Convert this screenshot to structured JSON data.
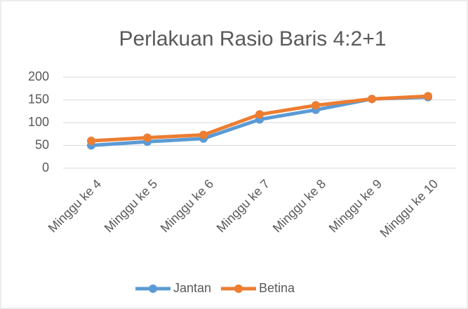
{
  "chart_data": {
    "type": "line",
    "title": "Perlakuan Rasio Baris 4:2+1",
    "categories": [
      "Minggu ke 4",
      "Minggu ke 5",
      "Minggu ke 6",
      "Minggu ke 7",
      "Minggu ke 8",
      "Minggu ke 9",
      "Minggu ke 10"
    ],
    "series": [
      {
        "name": "Jantan",
        "color": "#5b9bd5",
        "values": [
          50,
          58,
          65,
          107,
          128,
          152,
          156
        ]
      },
      {
        "name": "Betina",
        "color": "#ed7d31",
        "values": [
          60,
          67,
          73,
          118,
          138,
          152,
          158
        ]
      }
    ],
    "ylim": [
      0,
      200
    ],
    "yticks": [
      0,
      50,
      100,
      150,
      200
    ],
    "grid": true,
    "legend": "bottom"
  }
}
